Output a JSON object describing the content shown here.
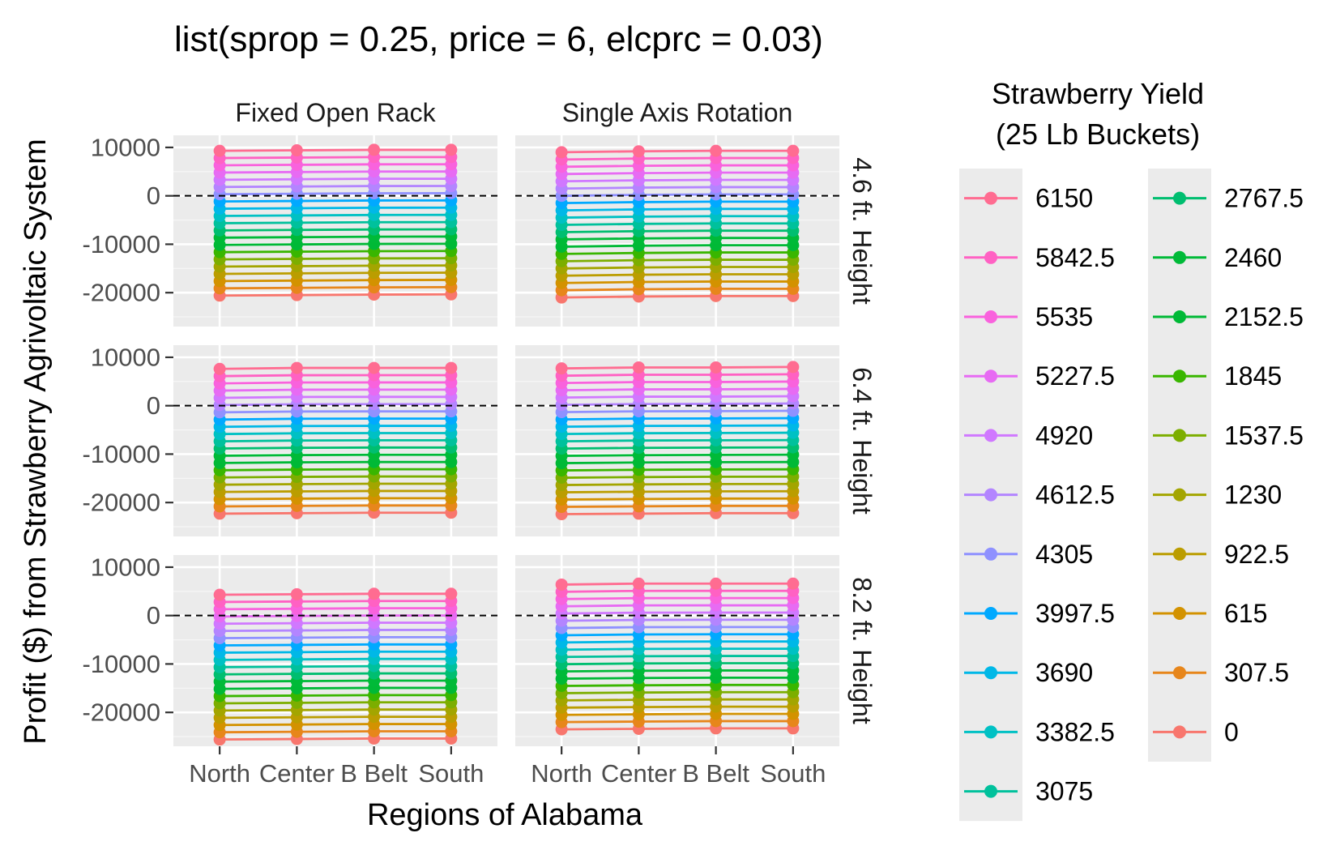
{
  "chart_data": {
    "type": "line",
    "title": "list(sprop = 0.25, price = 6, elcprc = 0.03)",
    "xlabel": "Regions of Alabama",
    "ylabel": "Profit ($) from Strawberry Agrivoltaic System",
    "categories": [
      "North",
      "Center",
      "B Belt",
      "South"
    ],
    "yticks": [
      10000,
      0,
      -10000,
      -20000
    ],
    "ylim": [
      -27000,
      12500
    ],
    "grid": true,
    "reference_line": 0,
    "facet_columns": [
      "Fixed Open Rack",
      "Single Axis Rotation"
    ],
    "facet_rows": [
      "4.6 ft. Height",
      "6.4 ft. Height",
      "8.2 ft. Height"
    ],
    "legend": {
      "title_lines": [
        "Strawberry Yield",
        "(25 Lb Buckets)"
      ],
      "placement": "right",
      "columns": 2
    },
    "yields": [
      6150,
      5842.5,
      5535,
      5227.5,
      4920,
      4612.5,
      4305,
      3997.5,
      3690,
      3382.5,
      3075,
      2767.5,
      2460,
      2152.5,
      1845,
      1537.5,
      1230,
      922.5,
      615,
      307.5,
      0
    ],
    "yield_labels": [
      "6150",
      "5842.5",
      "5535",
      "5227.5",
      "4920",
      "4612.5",
      "4305",
      "3997.5",
      "3690",
      "3382.5",
      "3075",
      "2767.5",
      "2460",
      "2152.5",
      "1845",
      "1537.5",
      "1230",
      "922.5",
      "615",
      "307.5",
      "0"
    ],
    "colors": [
      "#FF6C91",
      "#FF61C3",
      "#F962DD",
      "#E76BF3",
      "#D078FF",
      "#B385FF",
      "#8F91FF",
      "#00A9FF",
      "#00B8E7",
      "#00C1C4",
      "#00C19C",
      "#00BE70",
      "#00BA38",
      "#00B936",
      "#39B600",
      "#7CAE00",
      "#A3A500",
      "#BB9D00",
      "#D39200",
      "#E7861B",
      "#F8766D"
    ],
    "panels": [
      {
        "column": "Fixed Open Rack",
        "row": "4.6 ft. Height",
        "yield_0": [
          -20600,
          -20500,
          -20400,
          -20350
        ],
        "yield_6150": [
          9300,
          9400,
          9500,
          9500
        ]
      },
      {
        "column": "Single Axis Rotation",
        "row": "4.6 ft. Height",
        "yield_0": [
          -21000,
          -20800,
          -20700,
          -20700
        ],
        "yield_6150": [
          9000,
          9200,
          9300,
          9300
        ]
      },
      {
        "column": "Fixed Open Rack",
        "row": "6.4 ft. Height",
        "yield_0": [
          -22300,
          -22200,
          -22100,
          -22100
        ],
        "yield_6150": [
          7600,
          7800,
          7800,
          7800
        ]
      },
      {
        "column": "Single Axis Rotation",
        "row": "6.4 ft. Height",
        "yield_0": [
          -22400,
          -22300,
          -22200,
          -22200
        ],
        "yield_6150": [
          7700,
          7900,
          7900,
          8000
        ]
      },
      {
        "column": "Fixed Open Rack",
        "row": "8.2 ft. Height",
        "yield_0": [
          -25600,
          -25500,
          -25400,
          -25400
        ],
        "yield_6150": [
          4300,
          4400,
          4500,
          4500
        ]
      },
      {
        "column": "Single Axis Rotation",
        "row": "8.2 ft. Height",
        "yield_0": [
          -23500,
          -23400,
          -23300,
          -23300
        ],
        "yield_6150": [
          6400,
          6600,
          6600,
          6600
        ]
      }
    ]
  }
}
